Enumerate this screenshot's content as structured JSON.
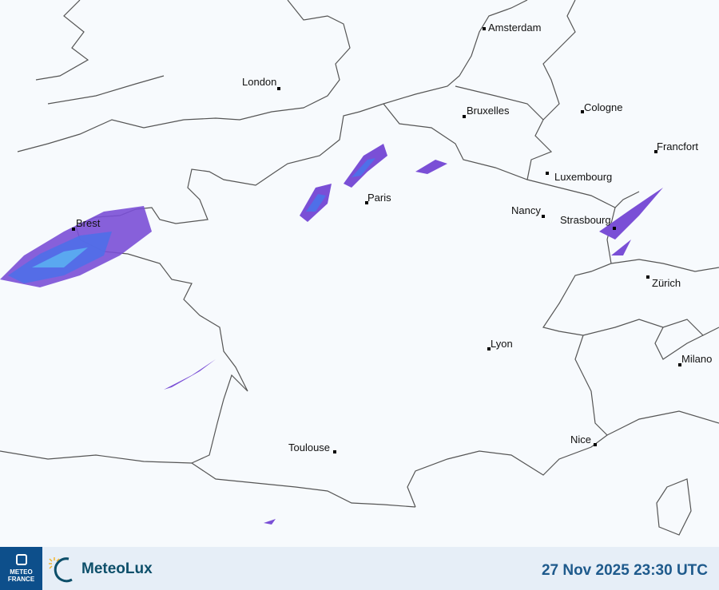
{
  "map": {
    "background_color": "#f7fafd",
    "border_color": "#555555",
    "radar_colors": [
      "#7a4fd6",
      "#4f6fe8",
      "#5aa8f0"
    ],
    "cities": [
      {
        "name": "Amsterdam"
      },
      {
        "name": "London"
      },
      {
        "name": "Bruxelles"
      },
      {
        "name": "Cologne"
      },
      {
        "name": "Francfort"
      },
      {
        "name": "Luxembourg"
      },
      {
        "name": "Paris"
      },
      {
        "name": "Nancy"
      },
      {
        "name": "Strasbourg"
      },
      {
        "name": "Brest"
      },
      {
        "name": "Zürich"
      },
      {
        "name": "Lyon"
      },
      {
        "name": "Milano"
      },
      {
        "name": "Nice"
      },
      {
        "name": "Toulouse"
      }
    ]
  },
  "footer": {
    "meteofrance_logo": "METEO FRANCE",
    "meteolux_logo": "MeteoLux",
    "timestamp": "27 Nov 2025 23:30 UTC"
  }
}
